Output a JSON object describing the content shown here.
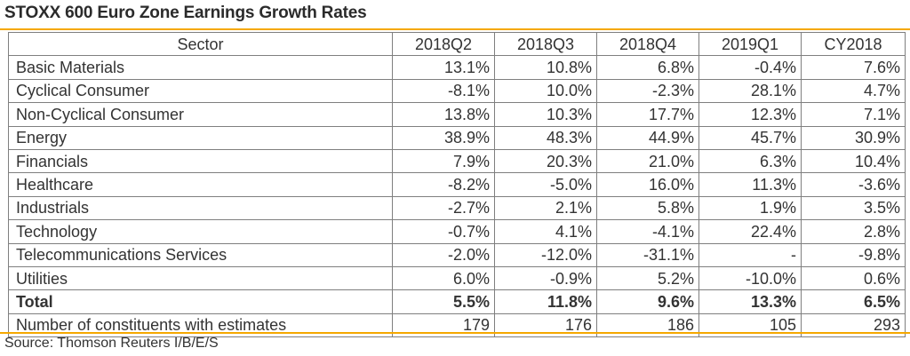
{
  "title": "STOXX 600 Euro Zone Earnings Growth Rates",
  "accent_color": "#f5a800",
  "table": {
    "headers": [
      "Sector",
      "2018Q2",
      "2018Q3",
      "2018Q4",
      "2019Q1",
      "CY2018"
    ],
    "rows": [
      [
        "Basic Materials",
        "13.1%",
        "10.8%",
        "6.8%",
        "-0.4%",
        "7.6%"
      ],
      [
        "Cyclical Consumer",
        "-8.1%",
        "10.0%",
        "-2.3%",
        "28.1%",
        "4.7%"
      ],
      [
        "Non-Cyclical Consumer",
        "13.8%",
        "10.3%",
        "17.7%",
        "12.3%",
        "7.1%"
      ],
      [
        "Energy",
        "38.9%",
        "48.3%",
        "44.9%",
        "45.7%",
        "30.9%"
      ],
      [
        "Financials",
        "7.9%",
        "20.3%",
        "21.0%",
        "6.3%",
        "10.4%"
      ],
      [
        "Healthcare",
        "-8.2%",
        "-5.0%",
        "16.0%",
        "11.3%",
        "-3.6%"
      ],
      [
        "Industrials",
        "-2.7%",
        "2.1%",
        "5.8%",
        "1.9%",
        "3.5%"
      ],
      [
        "Technology",
        "-0.7%",
        "4.1%",
        "-4.1%",
        "22.4%",
        "2.8%"
      ],
      [
        "Telecommunications Services",
        "-2.0%",
        "-12.0%",
        "-31.1%",
        "-",
        "-9.8%"
      ],
      [
        "Utilities",
        "6.0%",
        "-0.9%",
        "5.2%",
        "-10.0%",
        "0.6%"
      ],
      [
        "Total",
        "5.5%",
        "11.8%",
        "9.6%",
        "13.3%",
        "6.5%"
      ],
      [
        "Number of constituents with estimates",
        "179",
        "176",
        "186",
        "105",
        "293"
      ]
    ]
  },
  "source": "Source: Thomson Reuters I/B/E/S"
}
